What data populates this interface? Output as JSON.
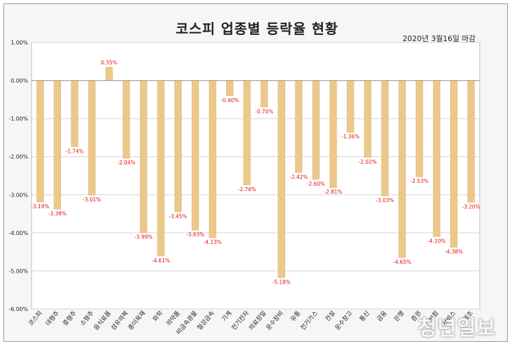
{
  "title": "코스피 업종별 등락율 현황",
  "date_note": "2020년 3월16일 마감",
  "watermark": "청년일보",
  "colors": {
    "bar": "#ecc98a",
    "bar_stroke": "#d9b06a",
    "label_red": "#e01010",
    "grid": "#d4d4d4",
    "axis_text": "#222222"
  },
  "chart_data": {
    "type": "bar",
    "title": "코스피 업종별 등락율 현황",
    "ylim": [
      -6,
      1
    ],
    "yticks": [
      1,
      0,
      -1,
      -2,
      -3,
      -4,
      -5,
      -6
    ],
    "ytick_labels": [
      "1.00%",
      "0.00%",
      "-1.00%",
      "-2.00%",
      "-3.00%",
      "-4.00%",
      "-5.00%",
      "-6.00%"
    ],
    "grid": true,
    "categories": [
      "코스피",
      "대형주",
      "중형주",
      "소형주",
      "음식료품",
      "섬유의복",
      "종이목재",
      "화학",
      "의약품",
      "비금속광물",
      "철강금속",
      "기계",
      "전기전자",
      "의료정밀",
      "운수장비",
      "유통",
      "전기가스",
      "건설",
      "운수창고",
      "통신",
      "금융",
      "은행",
      "증권",
      "보험",
      "서비스",
      "제조"
    ],
    "values": [
      -3.19,
      -3.38,
      -1.74,
      -3.01,
      0.35,
      -2.04,
      -3.99,
      -4.61,
      -3.45,
      -3.93,
      -4.13,
      -0.4,
      -2.74,
      -0.7,
      -5.18,
      -2.42,
      -2.6,
      -2.81,
      -1.36,
      -2.02,
      -3.03,
      -4.65,
      -2.53,
      -4.1,
      -4.38,
      -3.2
    ],
    "value_labels": [
      "-3.19%",
      "-3.38%",
      "-1.74%",
      "-3.01%",
      "0.35%",
      "-2.04%",
      "-3.99%",
      "-4.61%",
      "-3.45%",
      "-3.93%",
      "-4.13%",
      "-0.40%",
      "-2.74%",
      "-0.70%",
      "-5.18%",
      "-2.42%",
      "-2.60%",
      "-2.81%",
      "-1.36%",
      "-2.02%",
      "-3.03%",
      "-4.65%",
      "-2.53%",
      "-4.10%",
      "-4.38%",
      "-3.20%"
    ]
  }
}
